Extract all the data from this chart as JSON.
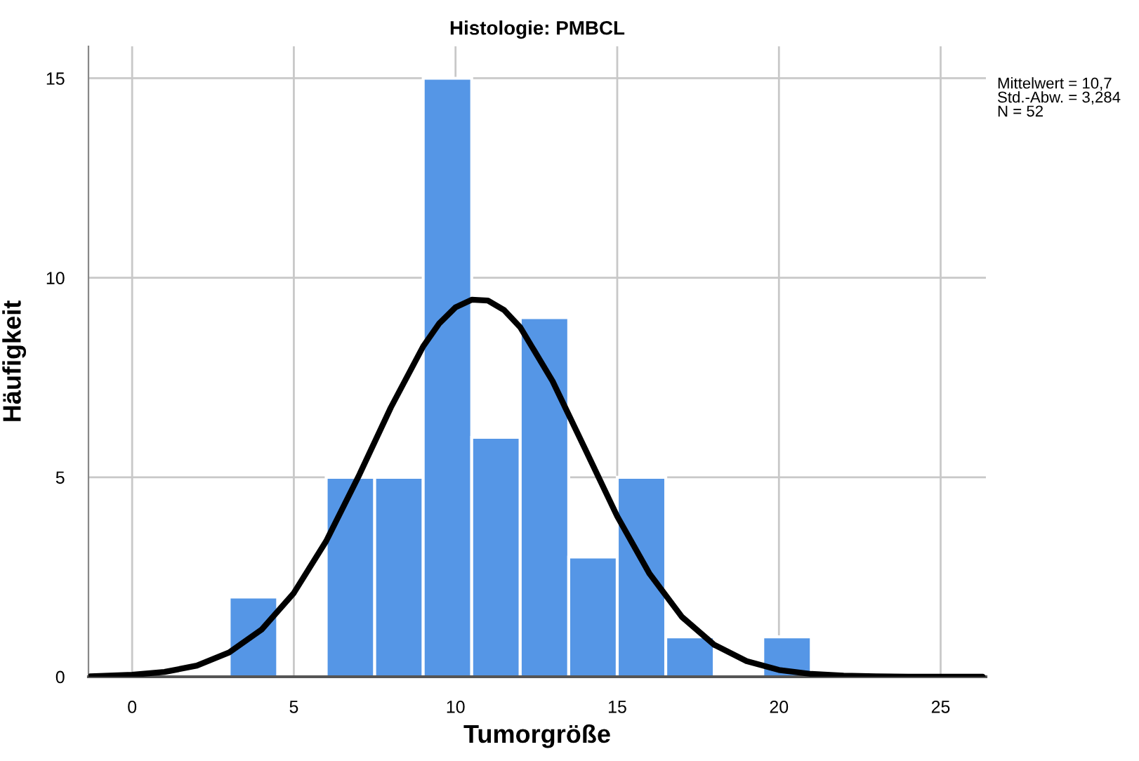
{
  "chart_data": {
    "type": "histogram",
    "title": "Histologie: PMBCL",
    "xlabel": "Tumorgröße",
    "ylabel": "Häufigkeit",
    "bins": [
      3,
      4.5,
      6,
      7.5,
      9,
      10.5,
      12,
      13.5,
      15,
      16.5,
      18,
      19.5,
      21
    ],
    "values": [
      2,
      0,
      5,
      5,
      15,
      6,
      9,
      3,
      5,
      1,
      0,
      1
    ],
    "color": "#5596e6",
    "series": [
      {
        "type": "line",
        "color": "#000000",
        "x": [
          -1.3,
          -1,
          0,
          1,
          2,
          3,
          4,
          5,
          6,
          7,
          8,
          9,
          9.5,
          10,
          10.5,
          11,
          11.5,
          12,
          13,
          14,
          15,
          16,
          17,
          18,
          19,
          20,
          21,
          22,
          23,
          24,
          26.3
        ],
        "values": [
          0.01,
          0.02,
          0.05,
          0.12,
          0.28,
          0.61,
          1.18,
          2.1,
          3.4,
          5.02,
          6.75,
          8.28,
          8.86,
          9.26,
          9.45,
          9.43,
          9.19,
          8.76,
          7.41,
          5.72,
          4.02,
          2.58,
          1.5,
          0.8,
          0.39,
          0.17,
          0.07,
          0.03,
          0.01,
          0,
          0
        ]
      }
    ],
    "xlim": [
      -1.35,
      26.4
    ],
    "ylim": [
      0,
      15.8
    ],
    "xticks": [
      0,
      5,
      10,
      15,
      20,
      25
    ],
    "yticks": [
      0,
      5,
      10,
      15
    ],
    "grid": true,
    "legend": false,
    "annotations": [
      "Mittelwert = 10,7\nStd.-Abw. = 3,284\nN = 52"
    ]
  }
}
